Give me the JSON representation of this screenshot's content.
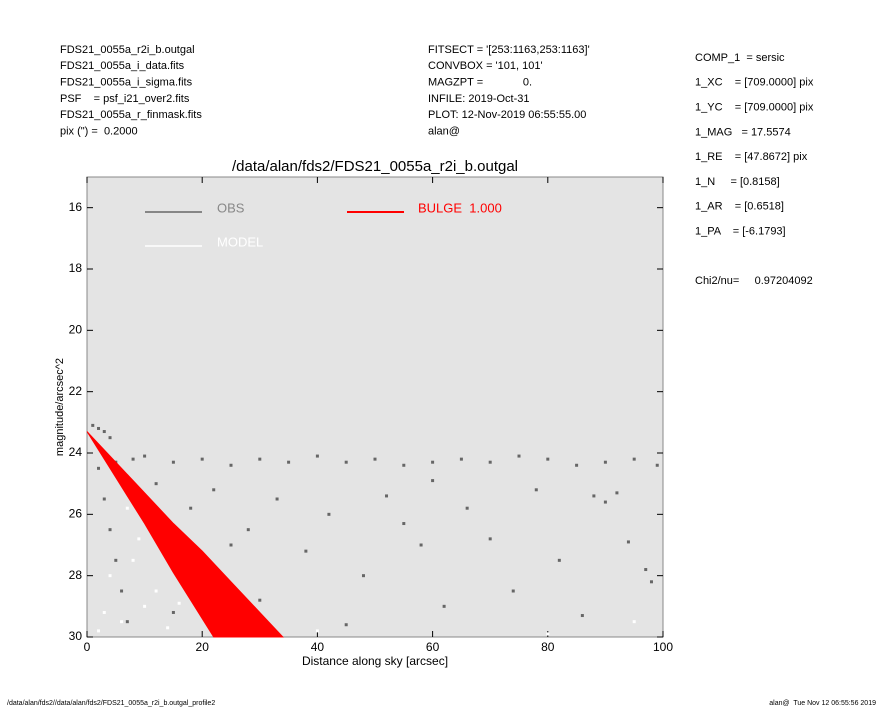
{
  "chart_data": {
    "type": "scatter",
    "title": "/data/alan/fds2/FDS21_0055a_r2i_b.outgal",
    "x_label": "Distance along sky [arcsec]",
    "y_label": "magnitude/arcsec^2",
    "xlim": [
      0,
      100
    ],
    "xticks": [
      0,
      20,
      40,
      60,
      80,
      100
    ],
    "ylim": [
      15,
      30
    ],
    "y_inverted": true,
    "yticks": [
      16,
      18,
      20,
      22,
      24,
      26,
      28,
      30
    ],
    "series": [
      {
        "name": "OBS",
        "color": "#666666",
        "x": [
          1,
          2,
          3,
          4,
          2,
          3,
          4,
          5,
          6,
          7,
          5,
          8,
          10,
          15,
          20,
          25,
          30,
          35,
          40,
          45,
          50,
          55,
          60,
          65,
          70,
          75,
          80,
          85,
          90,
          95,
          99,
          12,
          18,
          22,
          28,
          33,
          38,
          42,
          48,
          52,
          58,
          62,
          66,
          70,
          74,
          78,
          82,
          86,
          90,
          94,
          98,
          88,
          92,
          97,
          45,
          60,
          30,
          15,
          25,
          55
        ],
        "values": [
          23.1,
          23.2,
          23.3,
          23.5,
          24.5,
          25.5,
          26.5,
          27.5,
          28.5,
          29.5,
          24.3,
          24.2,
          24.1,
          24.3,
          24.2,
          24.4,
          24.2,
          24.3,
          24.1,
          24.3,
          24.2,
          24.4,
          24.3,
          24.2,
          24.3,
          24.1,
          24.2,
          24.4,
          24.3,
          24.2,
          24.4,
          25.0,
          25.8,
          25.2,
          26.5,
          25.5,
          27.2,
          26.0,
          28.0,
          25.4,
          27.0,
          29.0,
          25.8,
          26.8,
          28.5,
          25.2,
          27.5,
          29.3,
          25.6,
          26.9,
          28.2,
          25.4,
          25.3,
          27.8,
          29.6,
          24.9,
          28.8,
          29.2,
          27.0,
          26.3
        ]
      },
      {
        "name": "MODEL",
        "color": "#ffffff",
        "x": [
          2,
          4,
          6,
          8,
          10,
          3,
          12,
          14,
          9,
          16,
          40,
          80,
          95,
          7
        ],
        "values": [
          29.8,
          28.0,
          29.5,
          27.5,
          29.0,
          29.2,
          28.5,
          29.7,
          26.8,
          28.9,
          29.8,
          29.9,
          29.5,
          25.8
        ]
      },
      {
        "name": "BULGE  1.000",
        "color": "#ff0000",
        "x": [
          0,
          5,
          10,
          15,
          20,
          25,
          30,
          34
        ],
        "values": [
          23.3,
          24.3,
          25.3,
          26.3,
          27.2,
          28.2,
          29.2,
          30.0
        ],
        "x_inner": [
          0,
          5,
          10,
          15,
          20,
          22
        ],
        "values_inner": [
          23.3,
          24.8,
          26.3,
          27.9,
          29.4,
          30.0
        ]
      }
    ]
  },
  "header": {
    "left": [
      "FDS21_0055a_r2i_b.outgal",
      "FDS21_0055a_i_data.fits",
      "FDS21_0055a_i_sigma.fits",
      "PSF    = psf_i21_over2.fits",
      "FDS21_0055a_r_finmask.fits",
      "pix (\") =  0.2000"
    ],
    "middle": [
      "FITSECT = '[253:1163,253:1163]'",
      "CONVBOX = '101, 101'",
      "MAGZPT =             0.",
      "INFILE: 2019-Oct-31",
      "PLOT: 12-Nov-2019 06:55:55.00",
      "alan@"
    ],
    "right": [
      "COMP_1  = sersic",
      "1_XC    = [709.0000] pix",
      "1_YC    = [709.0000] pix",
      "1_MAG   = 17.5574",
      "1_RE    = [47.8672] pix",
      "1_N     = [0.8158]",
      "1_AR    = [0.6518]",
      "1_PA    = [-6.1793]",
      "Chi2/nu=     0.97204092"
    ]
  },
  "footer": {
    "left": "/data/alan/fds2//data/alan/fds2/FDS21_0055a_r2i_b.outgal_profile2",
    "right": "alan@  Tue Nov 12 06:55:56 2019"
  }
}
